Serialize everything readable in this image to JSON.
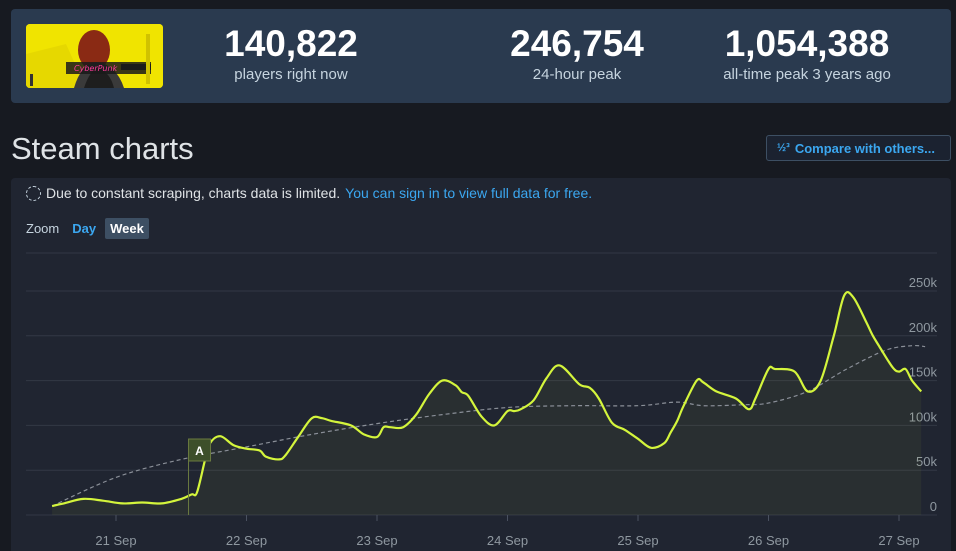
{
  "header": {
    "game_thumbnail_label": "Cyberpunk",
    "stats": [
      {
        "value": "140,822",
        "label": "players right now"
      },
      {
        "value": "246,754",
        "label": "24-hour peak"
      },
      {
        "value": "1,054,388",
        "label": "all-time peak 3 years ago"
      }
    ]
  },
  "page": {
    "title": "Steam charts",
    "compare_button": "Compare with others...",
    "compare_icon": "½³",
    "notice_text": "Due to constant scraping, charts data is limited.",
    "notice_link": "You can sign in to view full data for free.",
    "zoom_label": "Zoom",
    "zoom_options": [
      "Day",
      "Week"
    ],
    "zoom_selected": "Week"
  },
  "colors": {
    "line": "#d4f53c",
    "trend": "#8a8f98",
    "grid": "#323845",
    "accent": "#3ba7f0"
  },
  "chart_data": {
    "type": "line",
    "title": "",
    "xlabel": "",
    "ylabel": "",
    "ylim": [
      0,
      290000
    ],
    "x_ticks": [
      "21 Sep",
      "22 Sep",
      "23 Sep",
      "24 Sep",
      "25 Sep",
      "26 Sep",
      "27 Sep"
    ],
    "y_ticks": [
      "0",
      "50k",
      "100k",
      "150k",
      "200k",
      "250k"
    ],
    "y_tick_values": [
      0,
      50000,
      100000,
      150000,
      200000,
      250000
    ],
    "grid": true,
    "annotations": [
      {
        "label": "A",
        "x": 21.64
      }
    ],
    "series": [
      {
        "x": [
          20.51,
          20.6,
          20.75,
          20.9,
          21.05,
          21.2,
          21.35,
          21.5,
          21.58,
          21.62,
          21.68,
          21.72,
          21.8,
          21.9,
          22.0,
          22.1,
          22.15,
          22.25,
          22.3,
          22.4,
          22.5,
          22.58,
          22.65,
          22.8,
          22.9,
          23.0,
          23.05,
          23.1,
          23.2,
          23.3,
          23.4,
          23.5,
          23.6,
          23.65,
          23.7,
          23.8,
          23.9,
          24.0,
          24.05,
          24.1,
          24.2,
          24.3,
          24.4,
          24.55,
          24.63,
          24.7,
          24.8,
          24.9,
          25.0,
          25.1,
          25.2,
          25.25,
          25.3,
          25.35,
          25.45,
          25.5,
          25.6,
          25.75,
          25.85,
          25.9,
          26.0,
          26.05,
          26.2,
          26.3,
          26.4,
          26.5,
          26.58,
          26.65,
          26.75,
          26.8,
          26.85,
          26.95,
          27.0,
          27.05,
          27.1,
          27.17
        ],
        "y": [
          10000,
          13000,
          18000,
          16000,
          13000,
          14000,
          13000,
          18000,
          23000,
          25000,
          60000,
          80000,
          88000,
          78000,
          74000,
          72000,
          65000,
          62000,
          67000,
          88000,
          108000,
          108000,
          105000,
          100000,
          90000,
          87000,
          98000,
          98000,
          98000,
          112000,
          135000,
          150000,
          145000,
          137000,
          133000,
          110000,
          100000,
          116000,
          116000,
          118000,
          128000,
          153000,
          167000,
          146000,
          142000,
          130000,
          103000,
          95000,
          85000,
          75000,
          80000,
          92000,
          105000,
          122000,
          150000,
          148000,
          138000,
          130000,
          118000,
          130000,
          163000,
          163000,
          160000,
          138000,
          150000,
          200000,
          245000,
          243000,
          215000,
          200000,
          188000,
          165000,
          160000,
          163000,
          150000,
          138000
        ]
      },
      {
        "name": "",
        "x": [
          20.51,
          21.0,
          21.5,
          22.0,
          22.5,
          23.0,
          23.5,
          24.0,
          24.5,
          25.0,
          25.3,
          25.5,
          25.8,
          26.0,
          26.3,
          26.6,
          26.9,
          27.1,
          27.2
        ],
        "y": [
          10000,
          42000,
          62000,
          76000,
          90000,
          102000,
          112000,
          120000,
          122000,
          122000,
          126000,
          122000,
          123000,
          125000,
          138000,
          163000,
          184000,
          189000,
          188000
        ]
      }
    ]
  }
}
